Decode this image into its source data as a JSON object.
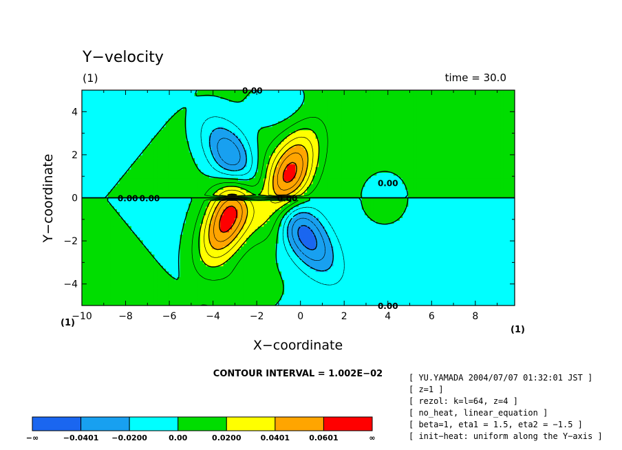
{
  "chart_data": {
    "type": "heatmap",
    "subtype": "filled-contour",
    "title": "Y−velocity",
    "subtitle": "(1)",
    "time_label": "time = 30.0",
    "xlabel": "X−coordinate",
    "ylabel": "Y−coordinate",
    "xlim": [
      -10,
      9.8
    ],
    "ylim": [
      -5,
      5
    ],
    "x_ticks": [
      -10,
      -8,
      -6,
      -4,
      -2,
      0,
      2,
      4,
      6,
      8
    ],
    "x_tick_labels": [
      "−10",
      "−8",
      "−6",
      "−4",
      "−2",
      "0",
      "2",
      "4",
      "6",
      "8"
    ],
    "y_ticks": [
      -4,
      -2,
      0,
      2,
      4
    ],
    "y_tick_labels": [
      "−4",
      "−2",
      "0",
      "2",
      "4"
    ],
    "corner_label_left": "(1)",
    "corner_label_right": "(1)",
    "contour_interval_label": "CONTOUR INTERVAL = 1.002E−02",
    "contour_labels": [
      {
        "text": "0.00",
        "x": -7.9,
        "y": 0
      },
      {
        "text": "0.00",
        "x": -6.9,
        "y": 0
      },
      {
        "text": "0.00",
        "x": -2.2,
        "y": 5
      },
      {
        "text": "0.00",
        "x": -0.6,
        "y": 0
      },
      {
        "text": "0.00",
        "x": 4.0,
        "y": 0.7
      },
      {
        "text": "0.00",
        "x": 4.0,
        "y": -5
      }
    ],
    "colorbar": {
      "boundaries": [
        "−∞",
        "−0.0401",
        "−0.0200",
        "0.00",
        "0.0200",
        "0.0401",
        "0.0601",
        "∞"
      ],
      "colors": [
        "#1a66f0",
        "#18a0f0",
        "#00ffff",
        "#00dd00",
        "#ffff00",
        "#ffa500",
        "#ff0000"
      ]
    },
    "field_features": [
      {
        "sign": "positive",
        "peak_level": 0.0601,
        "center": [
          -0.6,
          0.9
        ]
      },
      {
        "sign": "positive",
        "peak_level": 0.0601,
        "center": [
          -3.3,
          -0.9
        ]
      },
      {
        "sign": "negative",
        "peak_level": -0.0401,
        "center": [
          -3.0,
          1.7
        ]
      },
      {
        "sign": "negative",
        "peak_level": -0.0401,
        "center": [
          0.2,
          -1.7
        ]
      }
    ]
  },
  "info": [
    "[ YU.YAMADA 2004/07/07 01:32:01 JST ]",
    "[ z=1 ]",
    "[ rezol: k=l=64, z=4 ]",
    "[ no_heat, linear_equation ]",
    "[ beta=1, eta1 = 1.5, eta2 = −1.5 ]",
    "[ init−heat: uniform along the Y−axis ]"
  ]
}
